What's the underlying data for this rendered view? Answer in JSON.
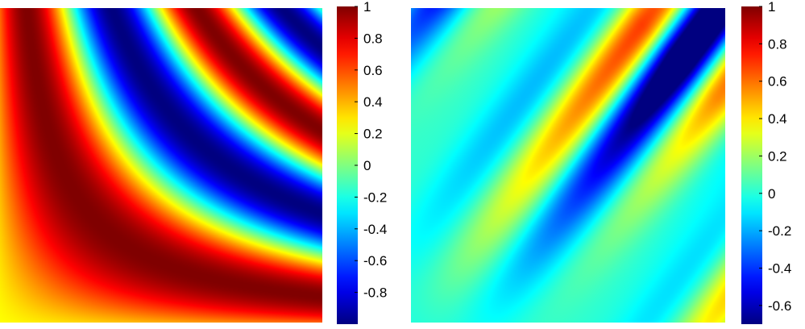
{
  "chart_data": [
    {
      "type": "heatmap",
      "field": "sin(k*x*y)-like curved bands",
      "colormap": "jet",
      "grid": false,
      "colorbar": {
        "range": [
          -1,
          1
        ],
        "ticks": [
          1,
          0.8,
          0.6,
          0.4,
          0.2,
          0,
          -0.2,
          -0.4,
          -0.6,
          -0.8
        ],
        "tick_labels": [
          "1",
          "0.8",
          "0.6",
          "0.4",
          "0.2",
          "0",
          "-0.2",
          "-0.4",
          "-0.6",
          "-0.8"
        ]
      }
    },
    {
      "type": "heatmap",
      "field": "diagonal wave bands growing toward upper-right",
      "colormap": "jet",
      "grid": false,
      "colorbar": {
        "range": [
          -0.7,
          1.0
        ],
        "ticks": [
          1,
          0.8,
          0.6,
          0.4,
          0.2,
          0,
          -0.2,
          -0.4,
          -0.6
        ],
        "tick_labels": [
          "1",
          "0.8",
          "0.6",
          "0.4",
          "0.2",
          "0",
          "-0.2",
          "-0.4",
          "-0.6"
        ]
      }
    }
  ]
}
